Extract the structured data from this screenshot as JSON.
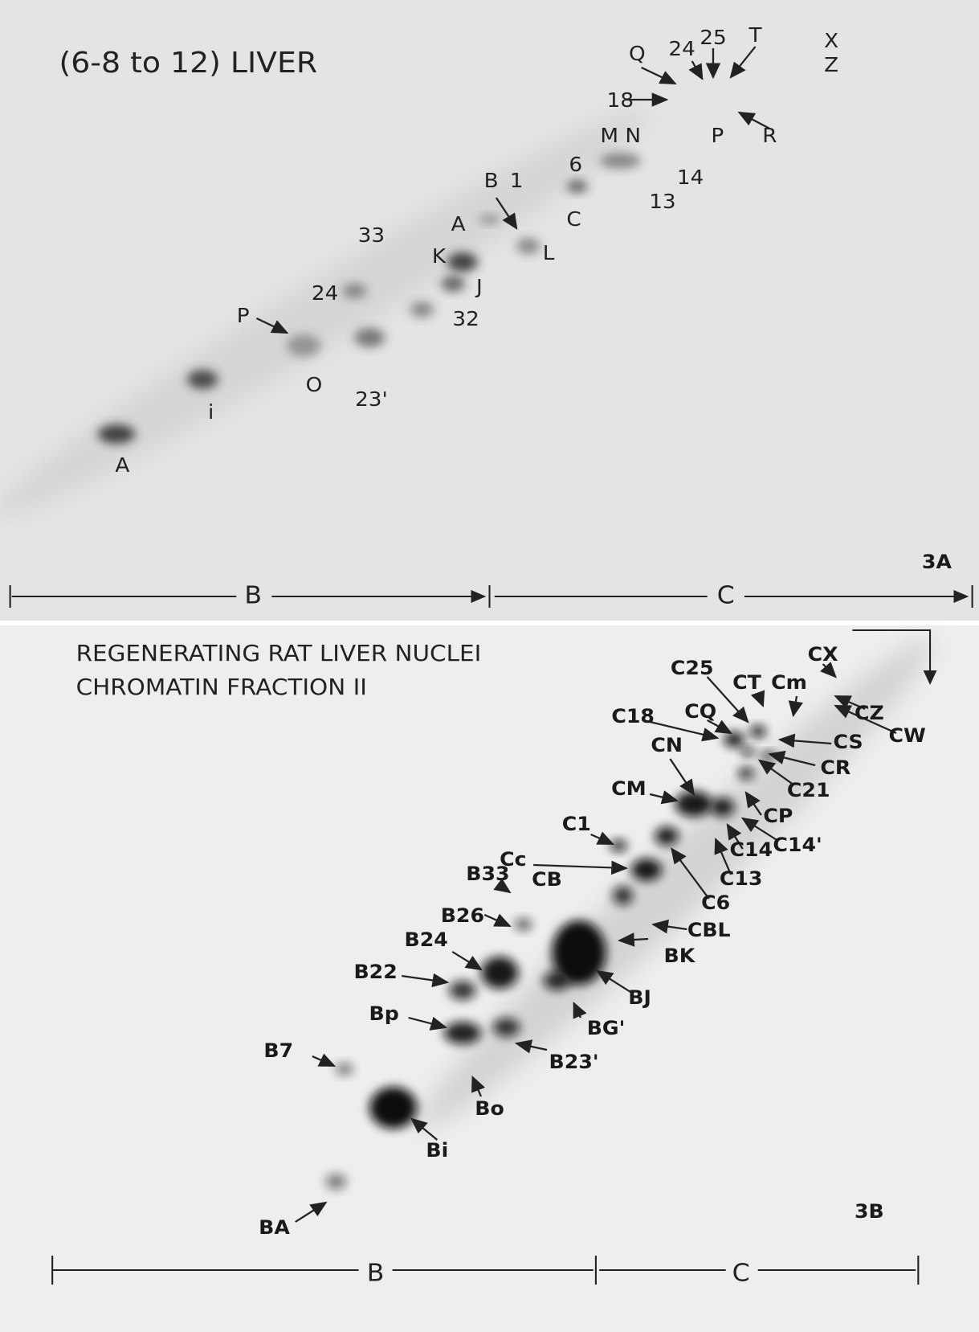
{
  "panel_a": {
    "title": "(6-8 to 12) LIVER",
    "labels": [
      "Q",
      "24",
      "25",
      "T",
      "X",
      "Z",
      "18",
      "M",
      "N",
      "P",
      "R",
      "6",
      "B",
      "1",
      "14",
      "13",
      "A",
      "C",
      "33",
      "K",
      "L",
      "24",
      "J",
      "P",
      "32",
      "O",
      "23'",
      "i",
      "A"
    ],
    "panel_label": "3A",
    "axis_left": "B",
    "axis_right": "C"
  },
  "panel_b": {
    "title_lines": [
      "REGENERATING RAT LIVER NUCLEI",
      "CHROMATIN FRACTION II"
    ],
    "labels": [
      "CX",
      "C25",
      "CT",
      "Cm",
      "C18",
      "CQ",
      "CZ",
      "CW",
      "CS",
      "CN",
      "CR",
      "C21",
      "CM",
      "CP",
      "C1",
      "C14",
      "C14'",
      "Cc",
      "C13",
      "B33",
      "CB",
      "C6",
      "B26",
      "CBL",
      "B24",
      "BK",
      "B22",
      "BJ",
      "Bp",
      "BG'",
      "B7",
      "B23'",
      "Bo",
      "Bi",
      "BA"
    ],
    "panel_label": "3B",
    "axis_left": "B",
    "axis_right": "C"
  }
}
